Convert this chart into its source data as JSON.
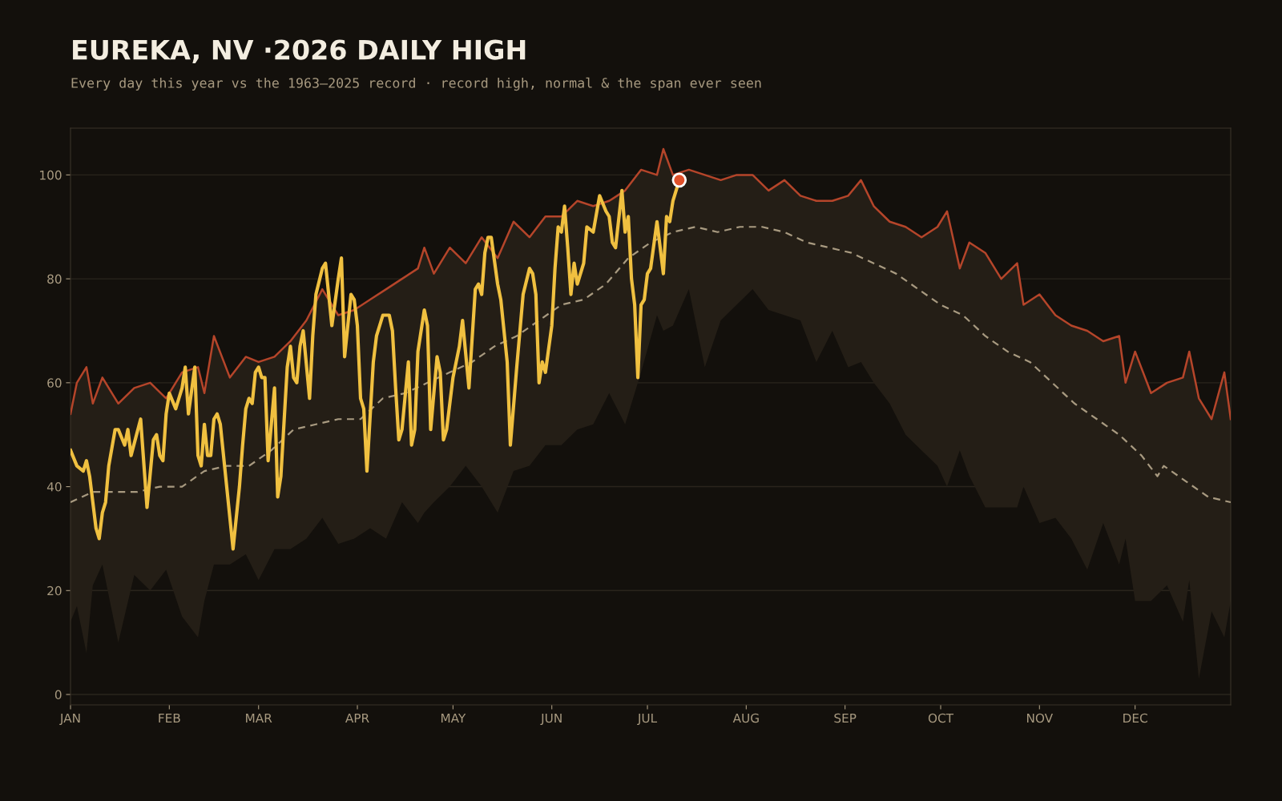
{
  "chart_data": {
    "type": "line",
    "title": "EUREKA, NV ·2026 DAILY HIGH",
    "subtitle": "Every day this year vs the 1963–2025 record · record high, normal & the span ever seen",
    "xlim": [
      "2026-01-01",
      "2026-12-31"
    ],
    "ylim": [
      -2,
      109
    ],
    "yticks": [
      0,
      20,
      40,
      60,
      80,
      100
    ],
    "grid": "y",
    "legend": false,
    "xticks": [
      {
        "value": "2026-01-01",
        "label": "JAN"
      },
      {
        "value": "2026-02-01",
        "label": "FEB"
      },
      {
        "value": "2026-03-01",
        "label": "MAR"
      },
      {
        "value": "2026-04-01",
        "label": "APR"
      },
      {
        "value": "2026-05-01",
        "label": "MAY"
      },
      {
        "value": "2026-06-01",
        "label": "JUN"
      },
      {
        "value": "2026-07-01",
        "label": "JUL"
      },
      {
        "value": "2026-08-01",
        "label": "AUG"
      },
      {
        "value": "2026-09-01",
        "label": "SEP"
      },
      {
        "value": "2026-10-01",
        "label": "OCT"
      },
      {
        "value": "2026-11-01",
        "label": "NOV"
      },
      {
        "value": "2026-12-01",
        "label": "DEC"
      }
    ],
    "series": [
      {
        "type": "line",
        "color": "#b5452a",
        "line_style": "solid",
        "marker": "none",
        "x": [
          "2026-01-01",
          "2026-01-03",
          "2026-01-06",
          "2026-01-08",
          "2026-01-11",
          "2026-01-16",
          "2026-01-21",
          "2026-01-26",
          "2026-01-31",
          "2026-02-05",
          "2026-02-10",
          "2026-02-12",
          "2026-02-15",
          "2026-02-20",
          "2026-02-25",
          "2026-03-01",
          "2026-03-06",
          "2026-03-11",
          "2026-03-16",
          "2026-03-21",
          "2026-03-26",
          "2026-03-31",
          "2026-04-05",
          "2026-04-10",
          "2026-04-15",
          "2026-04-20",
          "2026-04-22",
          "2026-04-25",
          "2026-04-30",
          "2026-05-05",
          "2026-05-10",
          "2026-05-15",
          "2026-05-20",
          "2026-05-25",
          "2026-05-30",
          "2026-06-04",
          "2026-06-09",
          "2026-06-14",
          "2026-06-19",
          "2026-06-24",
          "2026-06-29",
          "2026-07-04",
          "2026-07-06",
          "2026-07-09",
          "2026-07-14",
          "2026-07-19",
          "2026-07-24",
          "2026-07-29",
          "2026-08-03",
          "2026-08-08",
          "2026-08-13",
          "2026-08-18",
          "2026-08-23",
          "2026-08-28",
          "2026-09-02",
          "2026-09-06",
          "2026-09-10",
          "2026-09-15",
          "2026-09-20",
          "2026-09-25",
          "2026-09-30",
          "2026-10-03",
          "2026-10-07",
          "2026-10-10",
          "2026-10-15",
          "2026-10-20",
          "2026-10-25",
          "2026-10-27",
          "2026-11-01",
          "2026-11-06",
          "2026-11-11",
          "2026-11-16",
          "2026-11-21",
          "2026-11-26",
          "2026-11-28",
          "2026-12-01",
          "2026-12-06",
          "2026-12-11",
          "2026-12-16",
          "2026-12-18",
          "2026-12-21",
          "2026-12-25",
          "2026-12-29",
          "2026-12-31"
        ],
        "values": [
          54,
          60,
          63,
          56,
          61,
          56,
          59,
          60,
          57,
          62,
          63,
          58,
          69,
          61,
          65,
          64,
          65,
          68,
          72,
          78,
          73,
          74,
          76,
          78,
          80,
          82,
          86,
          81,
          86,
          83,
          88,
          84,
          91,
          88,
          92,
          92,
          95,
          94,
          95,
          97,
          101,
          100,
          105,
          100,
          101,
          100,
          99,
          100,
          100,
          97,
          99,
          96,
          95,
          95,
          96,
          99,
          94,
          91,
          90,
          88,
          90,
          93,
          82,
          87,
          85,
          80,
          83,
          75,
          77,
          73,
          71,
          70,
          68,
          69,
          60,
          66,
          58,
          60,
          61,
          66,
          57,
          53,
          62,
          53
        ],
        "upper": [
          54,
          60,
          63,
          56,
          61,
          56,
          59,
          60,
          57,
          62,
          63,
          58,
          69,
          61,
          65,
          64,
          65,
          68,
          72,
          78,
          73,
          74,
          76,
          78,
          80,
          82,
          86,
          81,
          86,
          83,
          88,
          84,
          91,
          88,
          92,
          92,
          95,
          94,
          95,
          97,
          101,
          100,
          105,
          100,
          101,
          100,
          99,
          100,
          100,
          97,
          99,
          96,
          95,
          95,
          96,
          99,
          94,
          91,
          90,
          88,
          90,
          93,
          82,
          87,
          85,
          80,
          83,
          75,
          77,
          73,
          71,
          70,
          68,
          69,
          60,
          66,
          58,
          60,
          61,
          66,
          57,
          53,
          62,
          53
        ],
        "lower": [
          14,
          17,
          8,
          21,
          25,
          10,
          23,
          20,
          24,
          15,
          11,
          18,
          25,
          25,
          27,
          22,
          28,
          28,
          30,
          34,
          29,
          30,
          32,
          30,
          37,
          33,
          35,
          37,
          40,
          44,
          40,
          35,
          43,
          44,
          48,
          48,
          51,
          52,
          58,
          52,
          62,
          73,
          70,
          71,
          78,
          63,
          72,
          75,
          78,
          74,
          73,
          72,
          64,
          70,
          63,
          64,
          60,
          56,
          50,
          47,
          44,
          40,
          47,
          42,
          36,
          36,
          36,
          40,
          33,
          34,
          30,
          24,
          33,
          25,
          30,
          18,
          18,
          21,
          14,
          22,
          3,
          16,
          11,
          18
        ]
      },
      {
        "type": "line",
        "color": "#a89a80",
        "line_style": "dashed",
        "marker": "none",
        "x": [
          "2026-01-01",
          "2026-01-08",
          "2026-01-15",
          "2026-01-22",
          "2026-01-29",
          "2026-02-05",
          "2026-02-12",
          "2026-02-19",
          "2026-02-26",
          "2026-03-05",
          "2026-03-12",
          "2026-03-19",
          "2026-03-26",
          "2026-04-02",
          "2026-04-09",
          "2026-04-16",
          "2026-04-23",
          "2026-04-30",
          "2026-05-07",
          "2026-05-14",
          "2026-05-21",
          "2026-05-28",
          "2026-06-04",
          "2026-06-11",
          "2026-06-18",
          "2026-06-25",
          "2026-07-02",
          "2026-07-09",
          "2026-07-16",
          "2026-07-23",
          "2026-07-30",
          "2026-08-06",
          "2026-08-13",
          "2026-08-20",
          "2026-08-27",
          "2026-09-03",
          "2026-09-10",
          "2026-09-17",
          "2026-09-24",
          "2026-10-01",
          "2026-10-08",
          "2026-10-15",
          "2026-10-22",
          "2026-10-29",
          "2026-11-05",
          "2026-11-12",
          "2026-11-19",
          "2026-11-26",
          "2026-12-03",
          "2026-12-08",
          "2026-12-10",
          "2026-12-17",
          "2026-12-24",
          "2026-12-31"
        ],
        "values": [
          37,
          39,
          39,
          39,
          40,
          40,
          43,
          44,
          44,
          47,
          51,
          52,
          53,
          53,
          57,
          58,
          60,
          62,
          64,
          67,
          69,
          72,
          75,
          76,
          79,
          84,
          87,
          89,
          90,
          89,
          90,
          90,
          89,
          87,
          86,
          85,
          83,
          81,
          78,
          75,
          73,
          69,
          66,
          64,
          60,
          56,
          53,
          50,
          46,
          42,
          44,
          41,
          38,
          37
        ]
      },
      {
        "color": "#f0c040",
        "line_style": "solid",
        "marker": "none",
        "x": [
          "2026-01-01",
          "2026-01-03",
          "2026-01-05",
          "2026-01-06",
          "2026-01-07",
          "2026-01-09",
          "2026-01-10",
          "2026-01-11",
          "2026-01-12",
          "2026-01-13",
          "2026-01-15",
          "2026-01-16",
          "2026-01-18",
          "2026-01-19",
          "2026-01-20",
          "2026-01-23",
          "2026-01-25",
          "2026-01-27",
          "2026-01-28",
          "2026-01-29",
          "2026-01-30",
          "2026-01-31",
          "2026-02-01",
          "2026-02-03",
          "2026-02-05",
          "2026-02-06",
          "2026-02-07",
          "2026-02-09",
          "2026-02-10",
          "2026-02-11",
          "2026-02-12",
          "2026-02-13",
          "2026-02-14",
          "2026-02-15",
          "2026-02-16",
          "2026-02-17",
          "2026-02-19",
          "2026-02-21",
          "2026-02-23",
          "2026-02-24",
          "2026-02-25",
          "2026-02-26",
          "2026-02-27",
          "2026-02-28",
          "2026-03-01",
          "2026-03-02",
          "2026-03-03",
          "2026-03-04",
          "2026-03-06",
          "2026-03-07",
          "2026-03-08",
          "2026-03-10",
          "2026-03-11",
          "2026-03-12",
          "2026-03-13",
          "2026-03-14",
          "2026-03-15",
          "2026-03-17",
          "2026-03-18",
          "2026-03-19",
          "2026-03-21",
          "2026-03-22",
          "2026-03-24",
          "2026-03-26",
          "2026-03-27",
          "2026-03-28",
          "2026-03-30",
          "2026-03-31",
          "2026-04-01",
          "2026-04-02",
          "2026-04-03",
          "2026-04-04",
          "2026-04-06",
          "2026-04-07",
          "2026-04-09",
          "2026-04-11",
          "2026-04-12",
          "2026-04-13",
          "2026-04-14",
          "2026-04-15",
          "2026-04-17",
          "2026-04-18",
          "2026-04-19",
          "2026-04-20",
          "2026-04-22",
          "2026-04-23",
          "2026-04-24",
          "2026-04-26",
          "2026-04-27",
          "2026-04-28",
          "2026-04-29",
          "2026-05-01",
          "2026-05-03",
          "2026-05-04",
          "2026-05-06",
          "2026-05-08",
          "2026-05-09",
          "2026-05-10",
          "2026-05-11",
          "2026-05-12",
          "2026-05-13",
          "2026-05-15",
          "2026-05-16",
          "2026-05-18",
          "2026-05-19",
          "2026-05-21",
          "2026-05-23",
          "2026-05-25",
          "2026-05-26",
          "2026-05-27",
          "2026-05-28",
          "2026-05-29",
          "2026-05-30",
          "2026-06-01",
          "2026-06-02",
          "2026-06-03",
          "2026-06-04",
          "2026-06-05",
          "2026-06-06",
          "2026-06-07",
          "2026-06-08",
          "2026-06-09",
          "2026-06-11",
          "2026-06-12",
          "2026-06-14",
          "2026-06-16",
          "2026-06-18",
          "2026-06-19",
          "2026-06-20",
          "2026-06-21",
          "2026-06-23",
          "2026-06-24",
          "2026-06-25",
          "2026-06-26",
          "2026-06-27",
          "2026-06-28",
          "2026-06-29",
          "2026-06-30",
          "2026-07-01",
          "2026-07-02",
          "2026-07-04",
          "2026-07-06",
          "2026-07-07",
          "2026-07-08",
          "2026-07-09",
          "2026-07-11"
        ],
        "values": [
          47,
          44,
          43,
          45,
          42,
          32,
          30,
          35,
          37,
          44,
          51,
          51,
          48,
          51,
          46,
          53,
          36,
          49,
          50,
          46,
          45,
          54,
          58,
          55,
          59,
          63,
          54,
          63,
          46,
          44,
          52,
          46,
          46,
          53,
          54,
          52,
          40,
          28,
          40,
          48,
          55,
          57,
          56,
          62,
          63,
          61,
          61,
          45,
          59,
          38,
          42,
          63,
          67,
          61,
          60,
          67,
          70,
          57,
          69,
          77,
          82,
          83,
          71,
          80,
          84,
          65,
          77,
          76,
          71,
          57,
          55,
          43,
          64,
          69,
          73,
          73,
          70,
          59,
          49,
          51,
          64,
          48,
          51,
          66,
          74,
          71,
          51,
          65,
          62,
          49,
          51,
          61,
          67,
          72,
          59,
          78,
          79,
          77,
          85,
          88,
          88,
          79,
          76,
          64,
          48,
          63,
          77,
          82,
          81,
          77,
          60,
          64,
          62,
          71,
          82,
          90,
          89,
          94,
          86,
          77,
          83,
          79,
          83,
          90,
          89,
          96,
          93,
          92,
          87,
          86,
          97,
          89,
          92,
          80,
          75,
          61,
          75,
          76,
          81,
          82,
          91,
          81,
          92,
          91,
          95,
          99
        ]
      },
      {
        "type": "scatter",
        "color": "#e0502a",
        "marker": "circle",
        "x": [
          "2026-07-11"
        ],
        "values": [
          99
        ]
      }
    ]
  }
}
